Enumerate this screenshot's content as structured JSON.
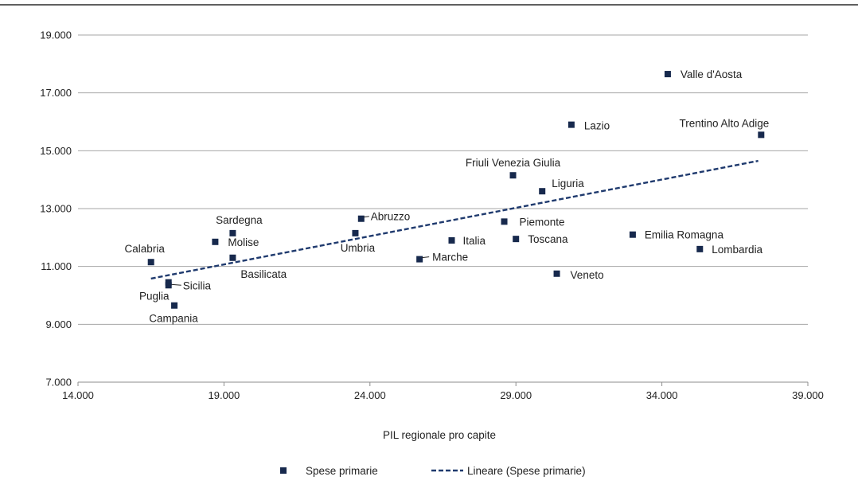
{
  "colors": {
    "marker": "#17294d",
    "trend": "#1f3a6e",
    "grid": "#a6a6a6",
    "axis": "#8c8c8c",
    "top_rule": "#000000"
  },
  "chart_data": {
    "type": "scatter",
    "title": "",
    "xlabel": "PIL regionale pro capite",
    "ylabel": "",
    "xlim": [
      14000,
      39000
    ],
    "ylim": [
      7000,
      19000
    ],
    "x_ticks": [
      14000,
      19000,
      24000,
      29000,
      34000,
      39000
    ],
    "x_tick_labels": [
      "14.000",
      "19.000",
      "24.000",
      "29.000",
      "34.000",
      "39.000"
    ],
    "y_ticks": [
      7000,
      9000,
      11000,
      13000,
      15000,
      17000,
      19000
    ],
    "y_tick_labels": [
      "7.000",
      "9.000",
      "11.000",
      "13.000",
      "15.000",
      "17.000",
      "19.000"
    ],
    "grid": true,
    "legend_position": "bottom",
    "series": [
      {
        "name": "Spese primarie",
        "points": [
          {
            "label": "Valle d'Aosta",
            "x": 34200,
            "y": 17650
          },
          {
            "label": "Trentino Alto Adige",
            "x": 37400,
            "y": 15550
          },
          {
            "label": "Lazio",
            "x": 30900,
            "y": 15900
          },
          {
            "label": "Friuli Venezia Giulia",
            "x": 28900,
            "y": 14150
          },
          {
            "label": "Liguria",
            "x": 29900,
            "y": 13600
          },
          {
            "label": "Piemonte",
            "x": 28600,
            "y": 12550
          },
          {
            "label": "Toscana",
            "x": 29000,
            "y": 11950
          },
          {
            "label": "Emilia Romagna",
            "x": 33000,
            "y": 12100
          },
          {
            "label": "Lombardia",
            "x": 35300,
            "y": 11600
          },
          {
            "label": "Veneto",
            "x": 30400,
            "y": 10750
          },
          {
            "label": "Italia",
            "x": 26800,
            "y": 11900
          },
          {
            "label": "Marche",
            "x": 25700,
            "y": 11250
          },
          {
            "label": "Abruzzo",
            "x": 23700,
            "y": 12650
          },
          {
            "label": "Umbria",
            "x": 23500,
            "y": 12150
          },
          {
            "label": "Sardegna",
            "x": 19300,
            "y": 12150
          },
          {
            "label": "Molise",
            "x": 18700,
            "y": 11850
          },
          {
            "label": "Basilicata",
            "x": 19300,
            "y": 11300
          },
          {
            "label": "Calabria",
            "x": 16500,
            "y": 11150
          },
          {
            "label": "Sicilia",
            "x": 17100,
            "y": 10350
          },
          {
            "label": "Puglia",
            "x": 17100,
            "y": 10450
          },
          {
            "label": "Campania",
            "x": 17300,
            "y": 9650
          }
        ]
      },
      {
        "name": "Lineare (Spese primarie)",
        "type": "trendline",
        "points": [
          {
            "x": 16500,
            "y": 10580
          },
          {
            "x": 37300,
            "y": 14650
          }
        ]
      }
    ]
  }
}
